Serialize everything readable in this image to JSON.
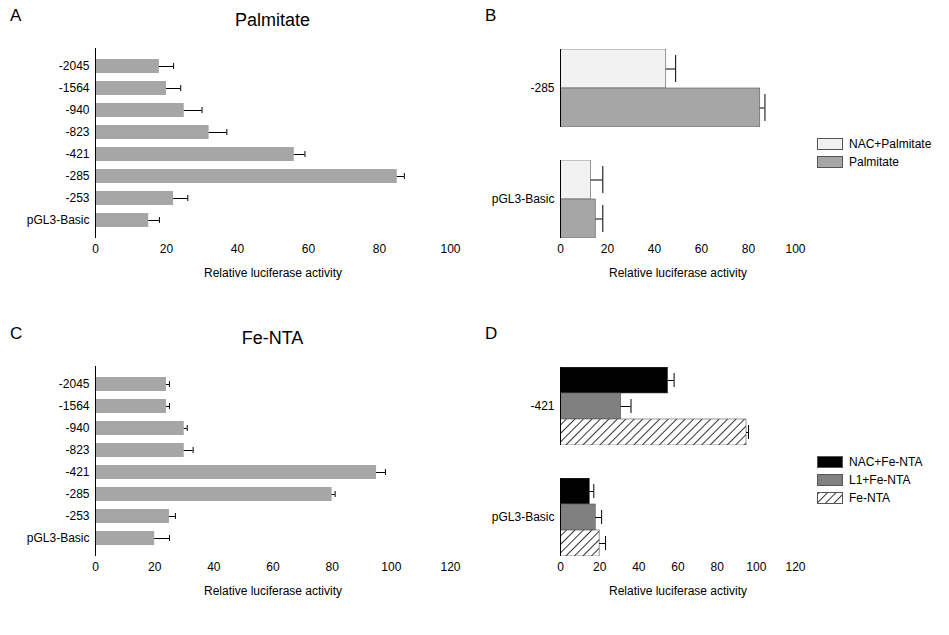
{
  "chart_data": [
    {
      "type": "bar",
      "title": "Palmitate",
      "annotations": [
        "A"
      ],
      "orientation": "horizontal",
      "grid": false,
      "xlabel": "Relative luciferase activity",
      "categories": [
        "-2045",
        "-1564",
        "-940",
        "-823",
        "-421",
        "-285",
        "-253",
        "pGL3-Basic"
      ],
      "values": [
        18,
        20,
        25,
        32,
        56,
        85,
        22,
        15
      ],
      "errors": [
        4,
        4,
        5,
        5,
        3,
        2,
        4,
        3
      ],
      "color": "#a6a6a6",
      "xlim": [
        0,
        100
      ],
      "xticks": [
        0,
        20,
        40,
        60,
        80,
        100
      ]
    },
    {
      "type": "bar",
      "annotations": [
        "B"
      ],
      "orientation": "horizontal",
      "grid": false,
      "legend": "right",
      "xlabel": "Relative luciferase activity",
      "categories": [
        "-285",
        "pGL3-Basic"
      ],
      "series": [
        {
          "name": "NAC+Palmitate",
          "color": "#f2f2f2",
          "values": [
            45,
            13
          ],
          "errors": [
            4,
            5
          ]
        },
        {
          "name": "Palmitate",
          "color": "#a6a6a6",
          "values": [
            85,
            15
          ],
          "errors": [
            2,
            3
          ]
        }
      ],
      "xlim": [
        0,
        100
      ],
      "xticks": [
        0,
        20,
        40,
        60,
        80,
        100
      ]
    },
    {
      "type": "bar",
      "title": "Fe-NTA",
      "annotations": [
        "C"
      ],
      "orientation": "horizontal",
      "grid": false,
      "xlabel": "Relative luciferase activity",
      "categories": [
        "-2045",
        "-1564",
        "-940",
        "-823",
        "-421",
        "-285",
        "-253",
        "pGL3-Basic"
      ],
      "values": [
        24,
        24,
        30,
        30,
        95,
        80,
        25,
        20
      ],
      "errors": [
        1,
        1,
        1,
        3,
        3,
        1,
        2,
        5
      ],
      "color": "#a6a6a6",
      "xlim": [
        0,
        120
      ],
      "xticks": [
        0,
        20,
        40,
        60,
        80,
        100,
        120
      ]
    },
    {
      "type": "bar",
      "annotations": [
        "D"
      ],
      "orientation": "horizontal",
      "grid": false,
      "legend": "right",
      "xlabel": "Relative luciferase activity",
      "categories": [
        "-421",
        "pGL3-Basic"
      ],
      "series": [
        {
          "name": "NAC+Fe-NTA",
          "color": "#000000",
          "values": [
            55,
            15
          ],
          "errors": [
            3,
            2
          ]
        },
        {
          "name": "L1+Fe-NTA",
          "color": "#808080",
          "values": [
            31,
            18
          ],
          "errors": [
            5,
            3
          ]
        },
        {
          "name": "Fe-NTA",
          "color": "#ffffff",
          "line_style": "hatch",
          "values": [
            95,
            20
          ],
          "errors": [
            1,
            3
          ]
        }
      ],
      "xlim": [
        0,
        120
      ],
      "xticks": [
        0,
        20,
        40,
        60,
        80,
        100,
        120
      ]
    }
  ]
}
